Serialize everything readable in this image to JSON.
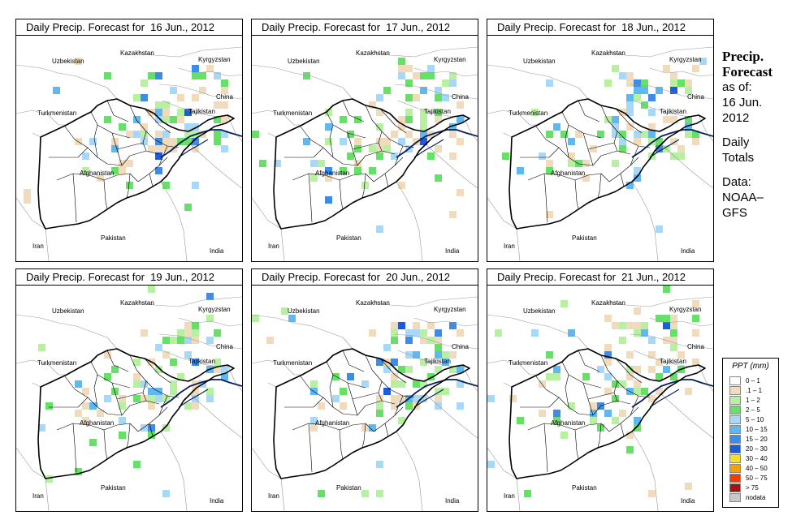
{
  "panels": [
    {
      "title": "Daily Precip. Forecast for  16 Jun., 2012",
      "seed": 11
    },
    {
      "title": "Daily Precip. Forecast for  17 Jun., 2012",
      "seed": 23
    },
    {
      "title": "Daily Precip. Forecast for  18 Jun., 2012",
      "seed": 37
    },
    {
      "title": "Daily Precip. Forecast for  19 Jun., 2012",
      "seed": 41
    },
    {
      "title": "Daily Precip. Forecast for  20 Jun., 2012",
      "seed": 53
    },
    {
      "title": "Daily Precip. Forecast for  21 Jun., 2012",
      "seed": 67
    }
  ],
  "map_labels": {
    "kazakhstan": "Kazakhstan",
    "kyrgyzstan": "Kyrgyzstan",
    "uzbekistan": "Uzbekistan",
    "china": "China",
    "turkmenistan": "Turkmenistan",
    "tajikistan": "Tajikistan",
    "afghanistan": "Afghanistan",
    "pakistan": "Pakistan",
    "iran": "Iran",
    "india": "India"
  },
  "sidebar": {
    "heading_line1": "Precip.",
    "heading_line2": "Forecast",
    "asof_label": "as of:",
    "date_line1": "16 Jun.",
    "date_line2": "2012",
    "totals_line1": "Daily",
    "totals_line2": "Totals",
    "data_line1": "Data:",
    "data_line2": "NOAA–",
    "data_line3": "GFS"
  },
  "legend": {
    "title": "PPT (mm)",
    "items": [
      {
        "label": "0 – 1",
        "color": "#ffffff"
      },
      {
        "label": ".1 – 1",
        "color": "#f0dcbc"
      },
      {
        "label": "1 – 2",
        "color": "#b6f0a0"
      },
      {
        "label": "2 – 5",
        "color": "#66e066"
      },
      {
        "label": "5 – 10",
        "color": "#a8d8f8"
      },
      {
        "label": "10 – 15",
        "color": "#60b8f0"
      },
      {
        "label": "15 – 20",
        "color": "#3c8ce8"
      },
      {
        "label": "20 – 30",
        "color": "#1c5cdc"
      },
      {
        "label": "30 – 40",
        "color": "#f8e020"
      },
      {
        "label": "40 – 50",
        "color": "#f8a000"
      },
      {
        "label": "50 – 75",
        "color": "#f03c00"
      },
      {
        "label": "> 75",
        "color": "#a01414"
      },
      {
        "label": "nodata",
        "color": "#c8c8c8"
      }
    ]
  },
  "colors": {
    "border": "#000000",
    "river": "#0a1e5a",
    "background": "#ffffff"
  }
}
